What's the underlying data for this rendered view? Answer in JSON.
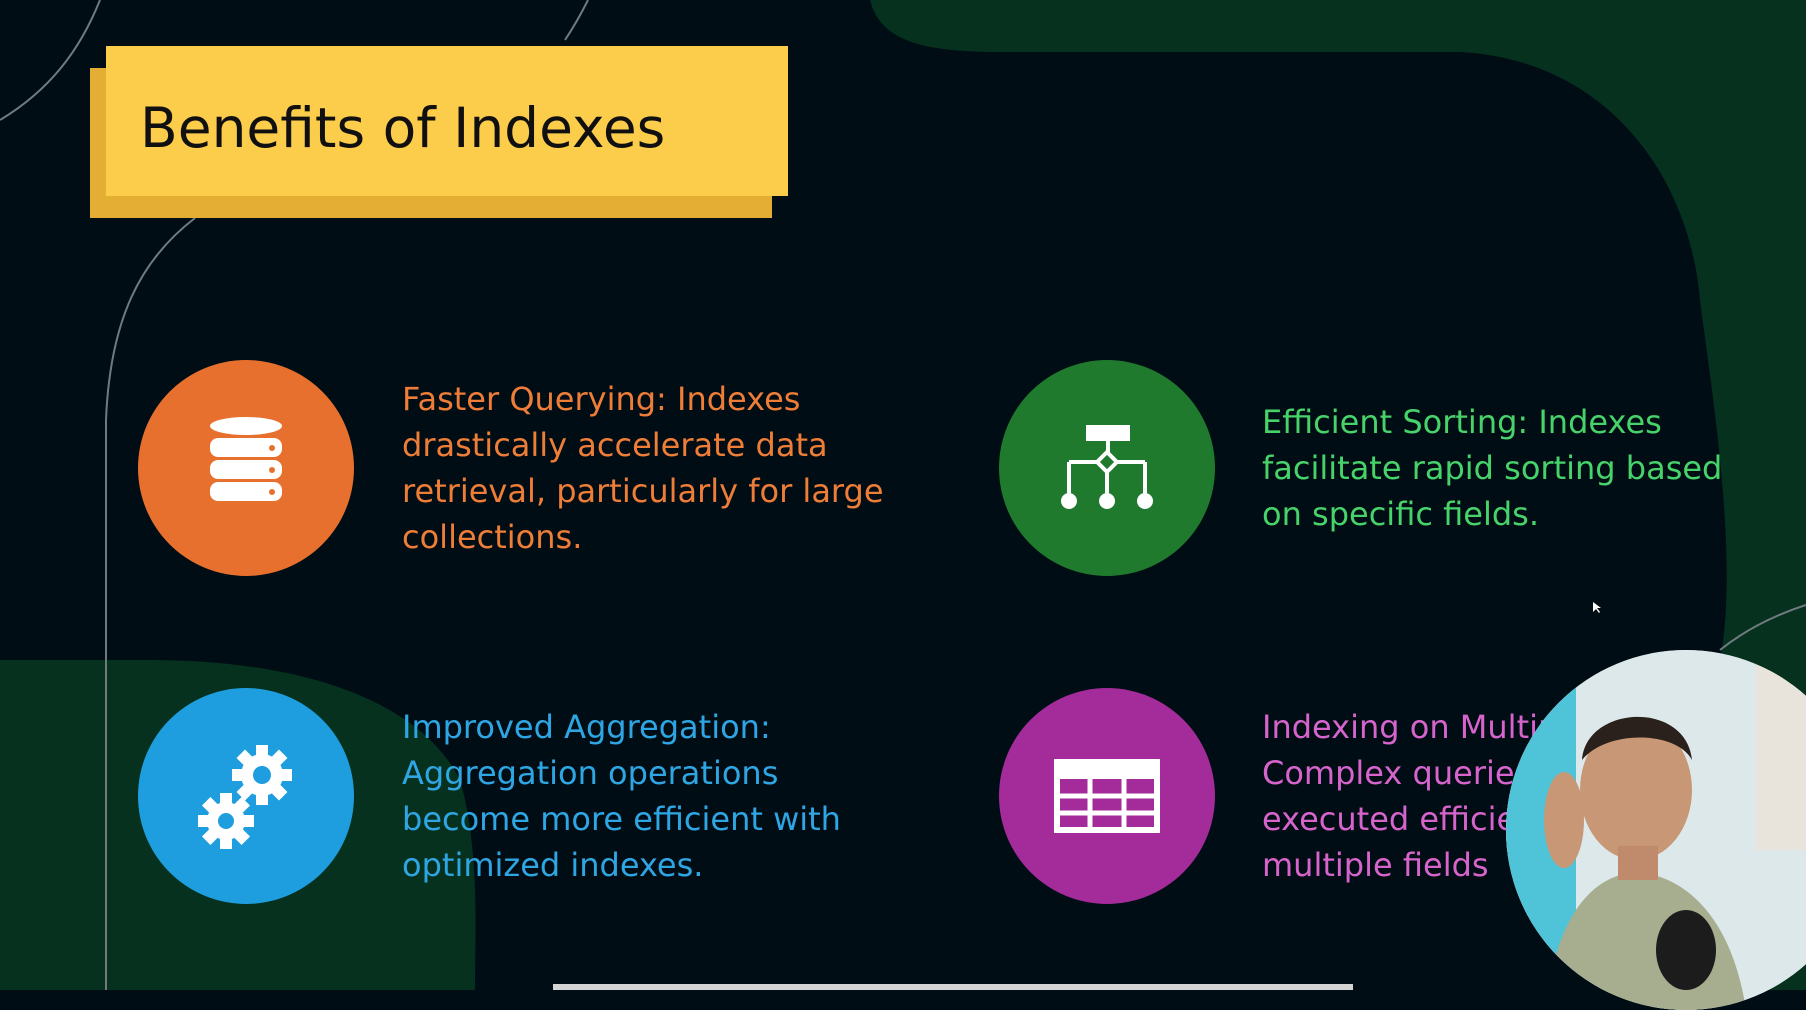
{
  "slide": {
    "title": "Benefits of Indexes",
    "benefits": [
      {
        "icon": "database-icon",
        "color": "#ee7d38",
        "lines": [
          "Faster Querying: Indexes",
          "drastically accelerate data",
          "retrieval, particularly for large",
          "collections."
        ]
      },
      {
        "icon": "hierarchy-icon",
        "color": "#47d36a",
        "lines": [
          "Efficient Sorting: Indexes",
          "facilitate rapid sorting based",
          "on specific fields."
        ]
      },
      {
        "icon": "gears-icon",
        "color": "#2fa6e4",
        "lines": [
          "Improved Aggregation:",
          "Aggregation operations",
          "become more efficient with",
          "optimized indexes."
        ]
      },
      {
        "icon": "table-icon",
        "color": "#d764cc",
        "lines": [
          "Indexing on Multipl",
          "Complex queries",
          "executed efficie",
          "multiple fields"
        ]
      }
    ]
  },
  "colors": {
    "background": "#010d14",
    "accent_green_blob": "#05311e",
    "title_box": "#fccd4b"
  }
}
